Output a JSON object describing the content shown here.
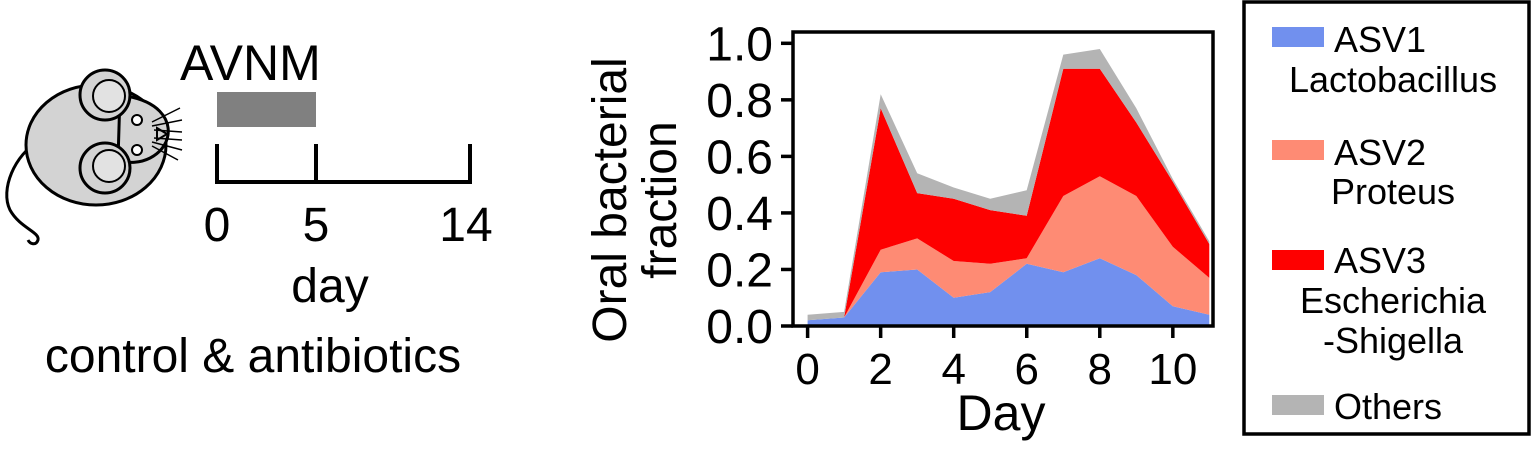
{
  "schematic": {
    "treatment_label": "AVNM",
    "timeline_ticks": [
      "0",
      "5",
      "14"
    ],
    "timeline_unit": "day",
    "condition_label": "control & antibiotics",
    "icons": [
      "mouse-icon"
    ],
    "colors": {
      "treatment_bar": "#808080",
      "mouse_body": "#d3d3d3"
    }
  },
  "chart_data": {
    "type": "area",
    "stacked": true,
    "xlabel": "Day",
    "ylabel_lines": [
      "Oral bacterial",
      "fraction"
    ],
    "xlim": [
      -0.4,
      11.1
    ],
    "ylim": [
      0,
      1.04
    ],
    "xticks": [
      0,
      2,
      4,
      6,
      8,
      10
    ],
    "yticks": [
      0.0,
      0.2,
      0.4,
      0.6,
      0.8,
      1.0
    ],
    "ytick_labels": [
      "0.0",
      "0.2",
      "0.4",
      "0.6",
      "0.8",
      "1.0"
    ],
    "x": [
      0,
      1,
      2,
      3,
      4,
      5,
      6,
      7,
      8,
      9,
      10,
      11
    ],
    "series": [
      {
        "name": "ASV1 Lactobacillus",
        "label_lines": [
          "ASV1",
          "Lactobacillus"
        ],
        "color": "#7190ee",
        "values": [
          0.02,
          0.03,
          0.19,
          0.2,
          0.1,
          0.12,
          0.22,
          0.19,
          0.24,
          0.18,
          0.07,
          0.04
        ]
      },
      {
        "name": "ASV2 Proteus",
        "label_lines": [
          "ASV2",
          "Proteus"
        ],
        "color": "#fe8b74",
        "values": [
          0.0,
          0.0,
          0.08,
          0.11,
          0.13,
          0.1,
          0.02,
          0.27,
          0.29,
          0.28,
          0.21,
          0.13
        ]
      },
      {
        "name": "ASV3 Escherichia-Shigella",
        "label_lines": [
          "ASV3",
          "Escherichia",
          "-Shigella"
        ],
        "color": "#fe0000",
        "values": [
          0.0,
          0.0,
          0.5,
          0.16,
          0.22,
          0.19,
          0.15,
          0.45,
          0.38,
          0.26,
          0.23,
          0.12
        ]
      },
      {
        "name": "Others",
        "label_lines": [
          "Others"
        ],
        "color": "#b4b4b4",
        "values": [
          0.02,
          0.02,
          0.05,
          0.07,
          0.04,
          0.04,
          0.09,
          0.05,
          0.07,
          0.05,
          0.01,
          0.01
        ]
      }
    ],
    "legend_position": "right"
  }
}
